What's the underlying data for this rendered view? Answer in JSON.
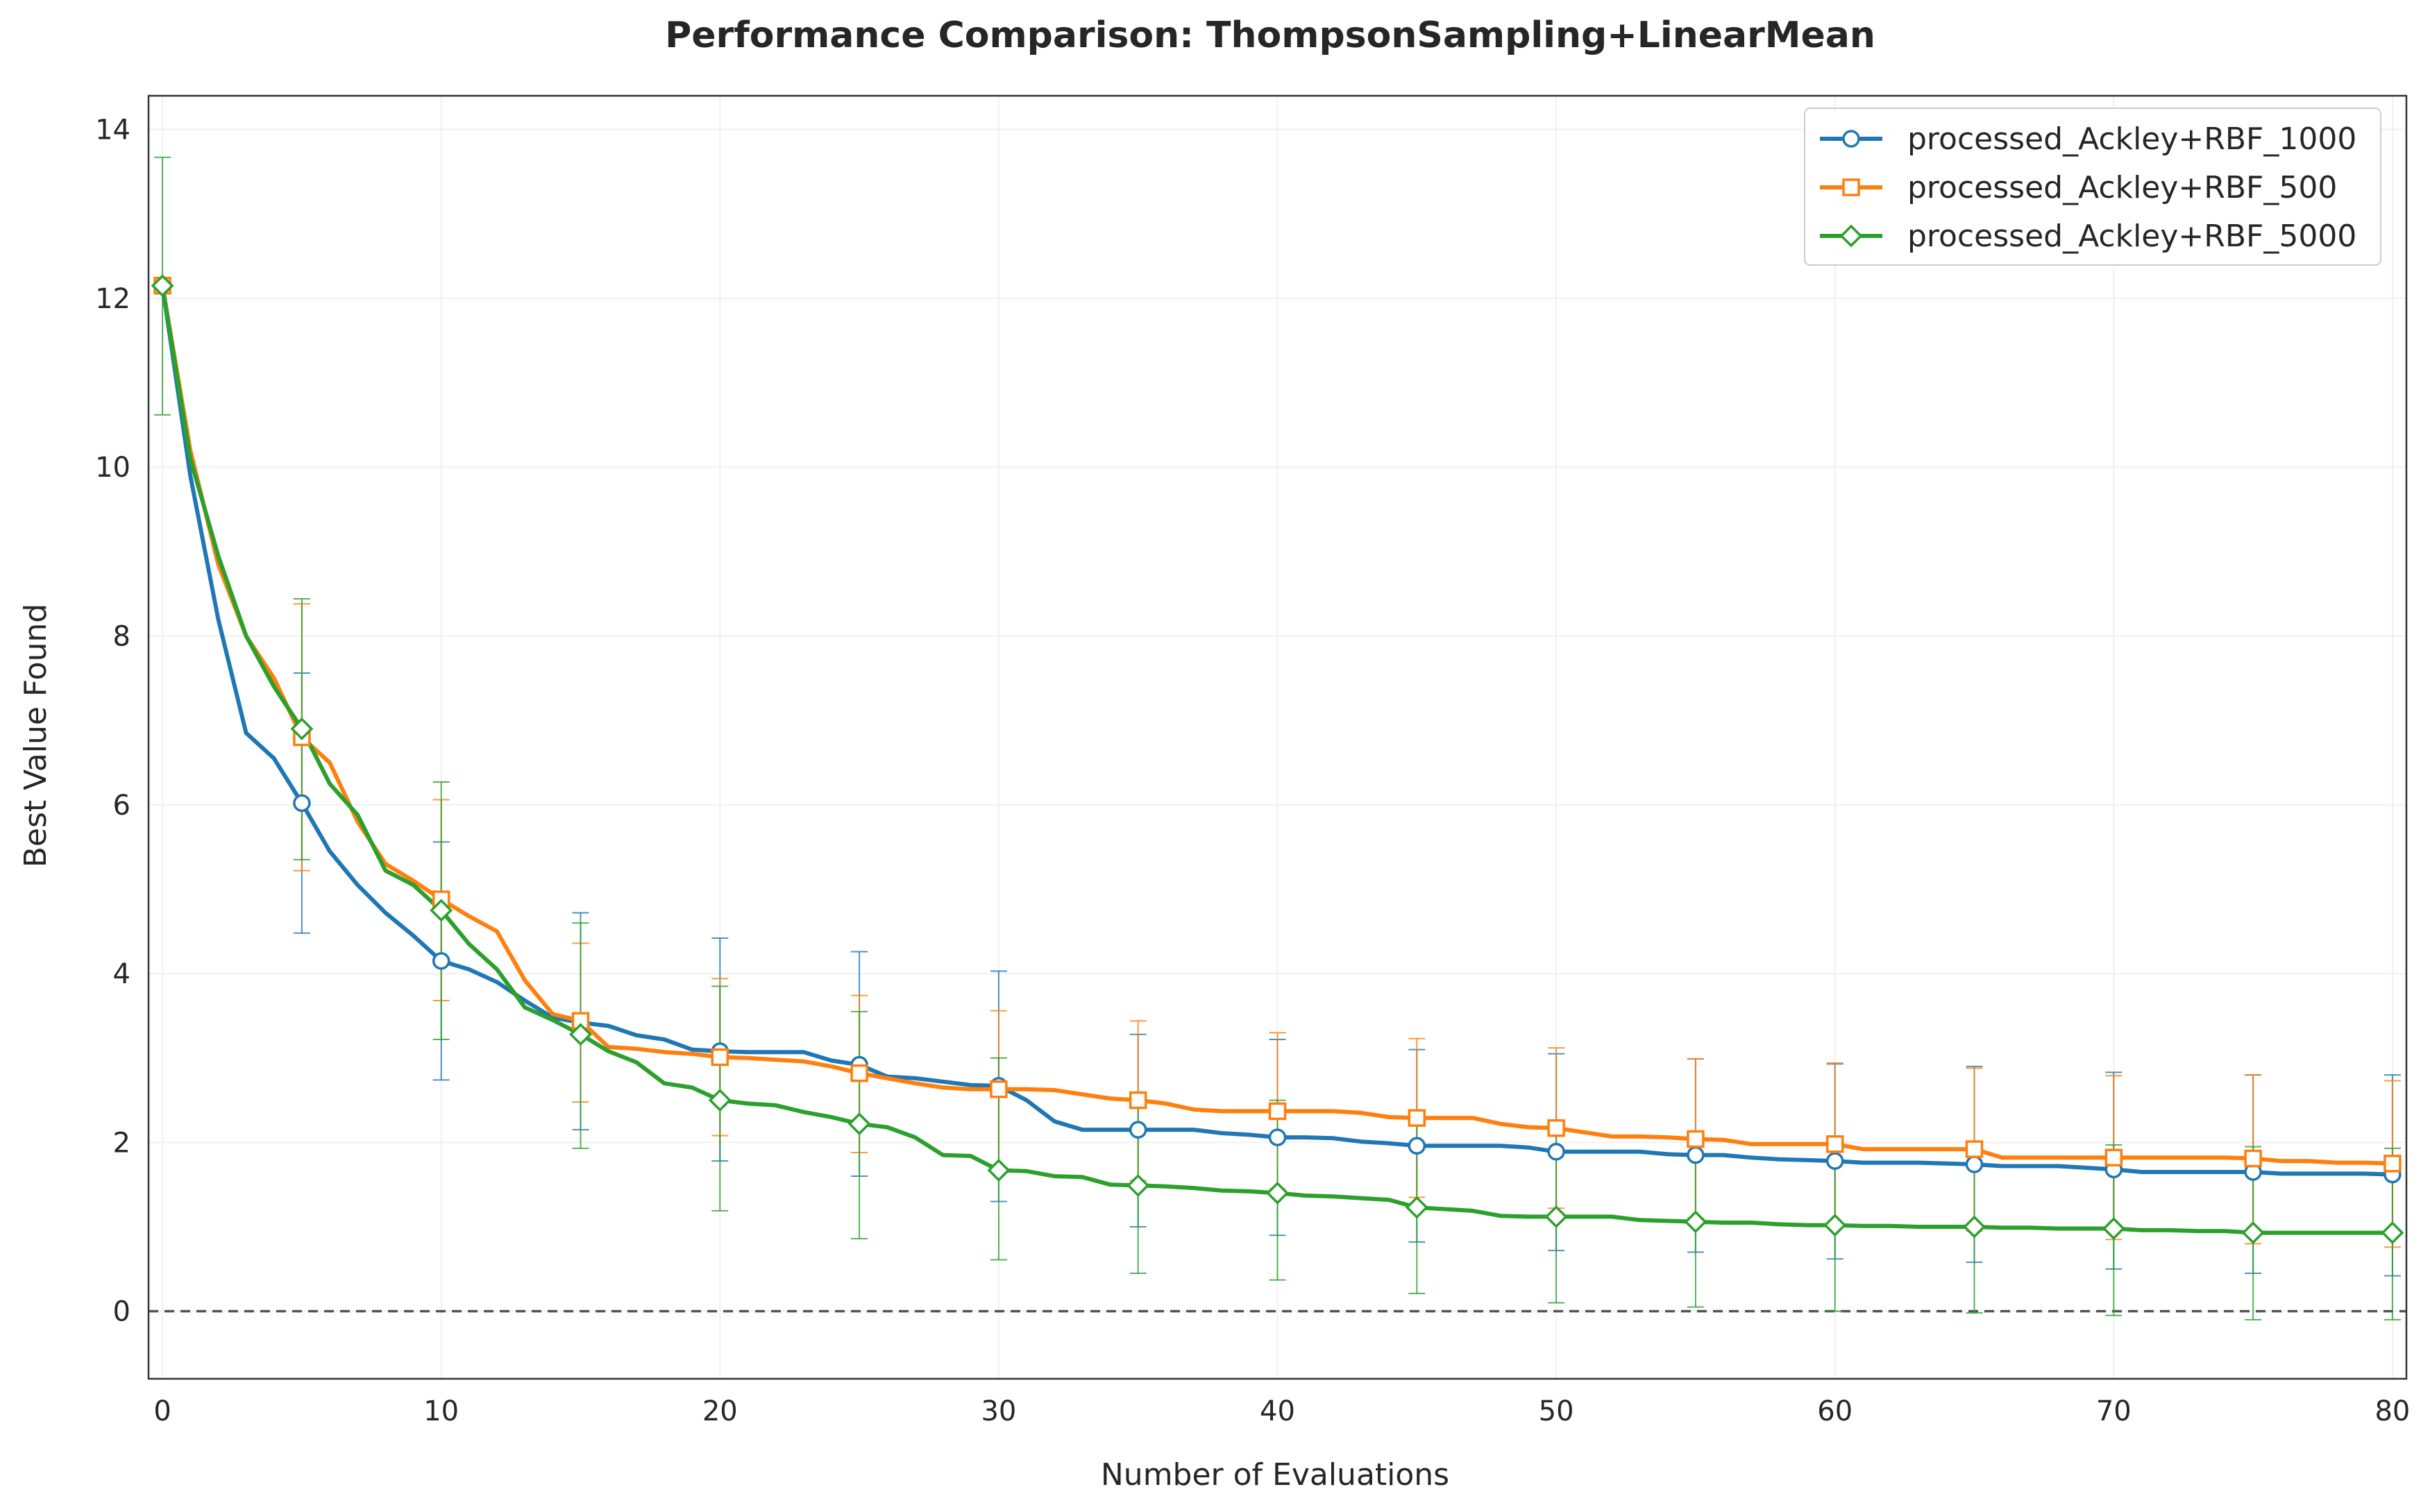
{
  "chart_data": {
    "type": "line",
    "title": "Performance Comparison: ThompsonSampling+LinearMean",
    "xlabel": "Number of Evaluations",
    "ylabel": "Best Value Found",
    "xlim": [
      -0.5,
      80.5
    ],
    "ylim": [
      -0.8,
      14.4
    ],
    "xticks": [
      0,
      10,
      20,
      30,
      40,
      50,
      60,
      70,
      80
    ],
    "yticks": [
      0,
      2,
      4,
      6,
      8,
      10,
      12,
      14
    ],
    "grid": true,
    "legend_position": "top-right",
    "reference_line": {
      "y": 0,
      "style": "dashed",
      "color": "#555555"
    },
    "series": [
      {
        "name": "processed_Ackley+RBF_1000",
        "color": "#1f77b4",
        "marker": "circle",
        "x": [
          0,
          1,
          2,
          3,
          4,
          5,
          6,
          7,
          8,
          9,
          10,
          11,
          12,
          13,
          14,
          15,
          16,
          17,
          18,
          19,
          20,
          21,
          22,
          23,
          24,
          25,
          26,
          27,
          28,
          29,
          30,
          31,
          32,
          33,
          34,
          35,
          36,
          37,
          38,
          39,
          40,
          41,
          42,
          43,
          44,
          45,
          46,
          47,
          48,
          49,
          50,
          51,
          52,
          53,
          54,
          55,
          56,
          57,
          58,
          59,
          60,
          61,
          62,
          63,
          64,
          65,
          66,
          67,
          68,
          69,
          70,
          71,
          72,
          73,
          74,
          75,
          76,
          77,
          78,
          79,
          80
        ],
        "y": [
          12.15,
          9.9,
          8.2,
          6.85,
          6.55,
          6.02,
          5.45,
          5.05,
          4.72,
          4.45,
          4.15,
          4.05,
          3.9,
          3.68,
          3.48,
          3.42,
          3.38,
          3.27,
          3.22,
          3.1,
          3.08,
          3.07,
          3.07,
          3.07,
          2.97,
          2.92,
          2.78,
          2.76,
          2.72,
          2.68,
          2.67,
          2.5,
          2.25,
          2.15,
          2.15,
          2.15,
          2.15,
          2.15,
          2.11,
          2.09,
          2.06,
          2.06,
          2.05,
          2.01,
          1.99,
          1.96,
          1.96,
          1.96,
          1.96,
          1.94,
          1.89,
          1.89,
          1.89,
          1.89,
          1.86,
          1.85,
          1.85,
          1.82,
          1.8,
          1.79,
          1.78,
          1.76,
          1.76,
          1.76,
          1.75,
          1.74,
          1.72,
          1.72,
          1.72,
          1.7,
          1.68,
          1.65,
          1.65,
          1.65,
          1.65,
          1.65,
          1.63,
          1.63,
          1.63,
          1.63,
          1.62
        ],
        "marker_x": [
          0,
          5,
          10,
          15,
          20,
          25,
          30,
          35,
          40,
          45,
          50,
          55,
          60,
          65,
          70,
          75,
          80
        ],
        "error_bars": {
          "x": [
            5,
            10,
            15,
            20,
            25,
            30,
            35,
            40,
            45,
            50,
            55,
            60,
            65,
            70,
            75,
            80
          ],
          "low": [
            4.48,
            2.74,
            2.15,
            1.78,
            1.6,
            1.3,
            1.0,
            0.9,
            0.82,
            0.72,
            0.7,
            0.62,
            0.58,
            0.5,
            0.45,
            0.42
          ],
          "high": [
            7.56,
            5.56,
            4.72,
            4.42,
            4.26,
            4.03,
            3.28,
            3.22,
            3.1,
            3.05,
            2.99,
            2.93,
            2.9,
            2.83,
            2.8,
            2.8
          ]
        }
      },
      {
        "name": "processed_Ackley+RBF_500",
        "color": "#ff7f0e",
        "marker": "square",
        "x": [
          0,
          1,
          2,
          3,
          4,
          5,
          6,
          7,
          8,
          9,
          10,
          11,
          12,
          13,
          14,
          15,
          16,
          17,
          18,
          19,
          20,
          21,
          22,
          23,
          24,
          25,
          26,
          27,
          28,
          29,
          30,
          31,
          32,
          33,
          34,
          35,
          36,
          37,
          38,
          39,
          40,
          41,
          42,
          43,
          44,
          45,
          46,
          47,
          48,
          49,
          50,
          51,
          52,
          53,
          54,
          55,
          56,
          57,
          58,
          59,
          60,
          61,
          62,
          63,
          64,
          65,
          66,
          67,
          68,
          69,
          70,
          71,
          72,
          73,
          74,
          75,
          76,
          77,
          78,
          79,
          80
        ],
        "y": [
          12.15,
          10.2,
          8.85,
          8.0,
          7.5,
          6.8,
          6.5,
          5.8,
          5.3,
          5.1,
          4.88,
          4.68,
          4.5,
          3.92,
          3.52,
          3.44,
          3.13,
          3.11,
          3.07,
          3.05,
          3.01,
          3.0,
          2.98,
          2.96,
          2.9,
          2.82,
          2.76,
          2.7,
          2.65,
          2.63,
          2.63,
          2.63,
          2.62,
          2.57,
          2.52,
          2.5,
          2.46,
          2.39,
          2.37,
          2.37,
          2.37,
          2.37,
          2.37,
          2.35,
          2.3,
          2.29,
          2.29,
          2.29,
          2.22,
          2.18,
          2.17,
          2.12,
          2.07,
          2.07,
          2.06,
          2.04,
          2.03,
          1.98,
          1.98,
          1.98,
          1.98,
          1.92,
          1.92,
          1.92,
          1.92,
          1.92,
          1.82,
          1.82,
          1.82,
          1.82,
          1.82,
          1.82,
          1.82,
          1.82,
          1.82,
          1.81,
          1.78,
          1.78,
          1.76,
          1.76,
          1.75
        ],
        "marker_x": [
          0,
          5,
          10,
          15,
          20,
          25,
          30,
          35,
          40,
          45,
          50,
          55,
          60,
          65,
          70,
          75,
          80
        ],
        "error_bars": {
          "x": [
            5,
            10,
            15,
            20,
            25,
            30,
            35,
            40,
            45,
            50,
            55,
            60,
            65,
            70,
            75,
            80
          ],
          "low": [
            5.22,
            3.68,
            2.48,
            2.08,
            1.88,
            1.7,
            1.55,
            1.45,
            1.35,
            1.22,
            1.1,
            1.02,
            0.95,
            0.85,
            0.8,
            0.76
          ],
          "high": [
            8.38,
            6.06,
            4.36,
            3.94,
            3.74,
            3.56,
            3.44,
            3.3,
            3.23,
            3.12,
            2.99,
            2.94,
            2.88,
            2.79,
            2.8,
            2.73
          ]
        }
      },
      {
        "name": "processed_Ackley+RBF_5000",
        "color": "#2ca02c",
        "marker": "diamond",
        "x": [
          0,
          1,
          2,
          3,
          4,
          5,
          6,
          7,
          8,
          9,
          10,
          11,
          12,
          13,
          14,
          15,
          16,
          17,
          18,
          19,
          20,
          21,
          22,
          23,
          24,
          25,
          26,
          27,
          28,
          29,
          30,
          31,
          32,
          33,
          34,
          35,
          36,
          37,
          38,
          39,
          40,
          41,
          42,
          43,
          44,
          45,
          46,
          47,
          48,
          49,
          50,
          51,
          52,
          53,
          54,
          55,
          56,
          57,
          58,
          59,
          60,
          61,
          62,
          63,
          64,
          65,
          66,
          67,
          68,
          69,
          70,
          71,
          72,
          73,
          74,
          75,
          76,
          77,
          78,
          79,
          80
        ],
        "y": [
          12.15,
          10.1,
          8.95,
          8.0,
          7.4,
          6.9,
          6.25,
          5.88,
          5.22,
          5.05,
          4.75,
          4.35,
          4.05,
          3.6,
          3.45,
          3.28,
          3.08,
          2.95,
          2.7,
          2.65,
          2.5,
          2.46,
          2.44,
          2.36,
          2.3,
          2.22,
          2.18,
          2.06,
          1.85,
          1.84,
          1.67,
          1.66,
          1.6,
          1.59,
          1.5,
          1.49,
          1.48,
          1.46,
          1.43,
          1.42,
          1.4,
          1.37,
          1.36,
          1.34,
          1.32,
          1.23,
          1.21,
          1.19,
          1.13,
          1.12,
          1.12,
          1.12,
          1.12,
          1.08,
          1.07,
          1.06,
          1.05,
          1.05,
          1.03,
          1.02,
          1.02,
          1.01,
          1.01,
          1.0,
          1.0,
          1.0,
          0.99,
          0.99,
          0.98,
          0.98,
          0.98,
          0.96,
          0.96,
          0.95,
          0.95,
          0.93,
          0.93,
          0.93,
          0.93,
          0.93,
          0.93
        ],
        "marker_x": [
          0,
          5,
          10,
          15,
          20,
          25,
          30,
          35,
          40,
          45,
          50,
          55,
          60,
          65,
          70,
          75,
          80
        ],
        "error_bars": {
          "x": [
            0,
            5,
            10,
            15,
            20,
            25,
            30,
            35,
            40,
            45,
            50,
            55,
            60,
            65,
            70,
            75,
            80
          ],
          "low": [
            10.62,
            5.35,
            3.22,
            1.93,
            1.19,
            0.86,
            0.61,
            0.45,
            0.37,
            0.21,
            0.1,
            0.05,
            0.0,
            -0.02,
            -0.05,
            -0.1,
            -0.1
          ],
          "high": [
            13.67,
            8.44,
            6.27,
            4.6,
            3.85,
            3.55,
            3.0,
            2.55,
            2.5,
            2.3,
            2.2,
            2.05,
            2.0,
            1.98,
            1.97,
            1.95,
            1.93
          ]
        }
      }
    ]
  }
}
